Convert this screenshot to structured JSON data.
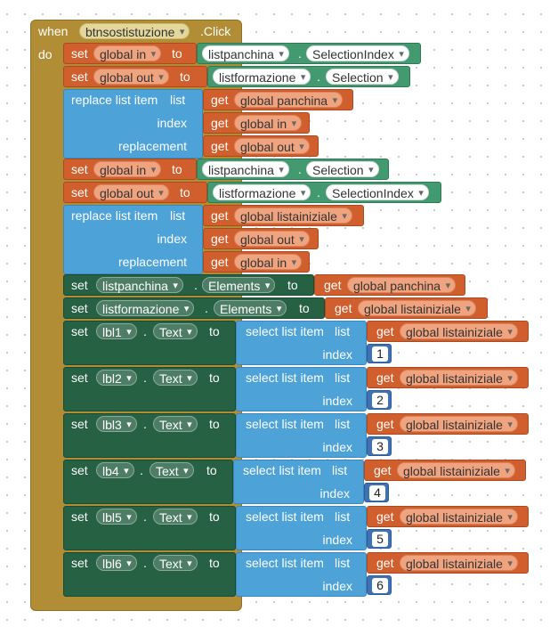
{
  "event": {
    "when": "when",
    "component": "btnsostistuzione",
    "event_name": ".Click",
    "do": "do"
  },
  "kw": {
    "set": "set",
    "to": "to",
    "get": "get",
    "replace_list_item": "replace list item",
    "list": "list",
    "index": "index",
    "replacement": "replacement",
    "select_list_item": "select list item",
    "dot": "."
  },
  "vars": {
    "global_in": "global in",
    "global_out": "global out",
    "global_panchina": "global panchina",
    "global_listainiziale": "global listainiziale"
  },
  "components": {
    "listpanchina": "listpanchina",
    "listformazione": "listformazione",
    "lbl1": "lbl1",
    "lbl2": "lbl2",
    "lbl3": "lbl3",
    "lb4": "lb4",
    "lbl5": "lbl5",
    "lbl6": "lbl6"
  },
  "props": {
    "selection_index": "SelectionIndex",
    "selection": "Selection",
    "elements": "Elements",
    "text": "Text"
  },
  "numbers": [
    "1",
    "2",
    "3",
    "4",
    "5",
    "6"
  ],
  "colors": {
    "event": "#b18e35",
    "variable": "#d05f2d",
    "component": "#439970",
    "list": "#4da3d8",
    "setter": "#266144",
    "number": "#3f71b5"
  }
}
